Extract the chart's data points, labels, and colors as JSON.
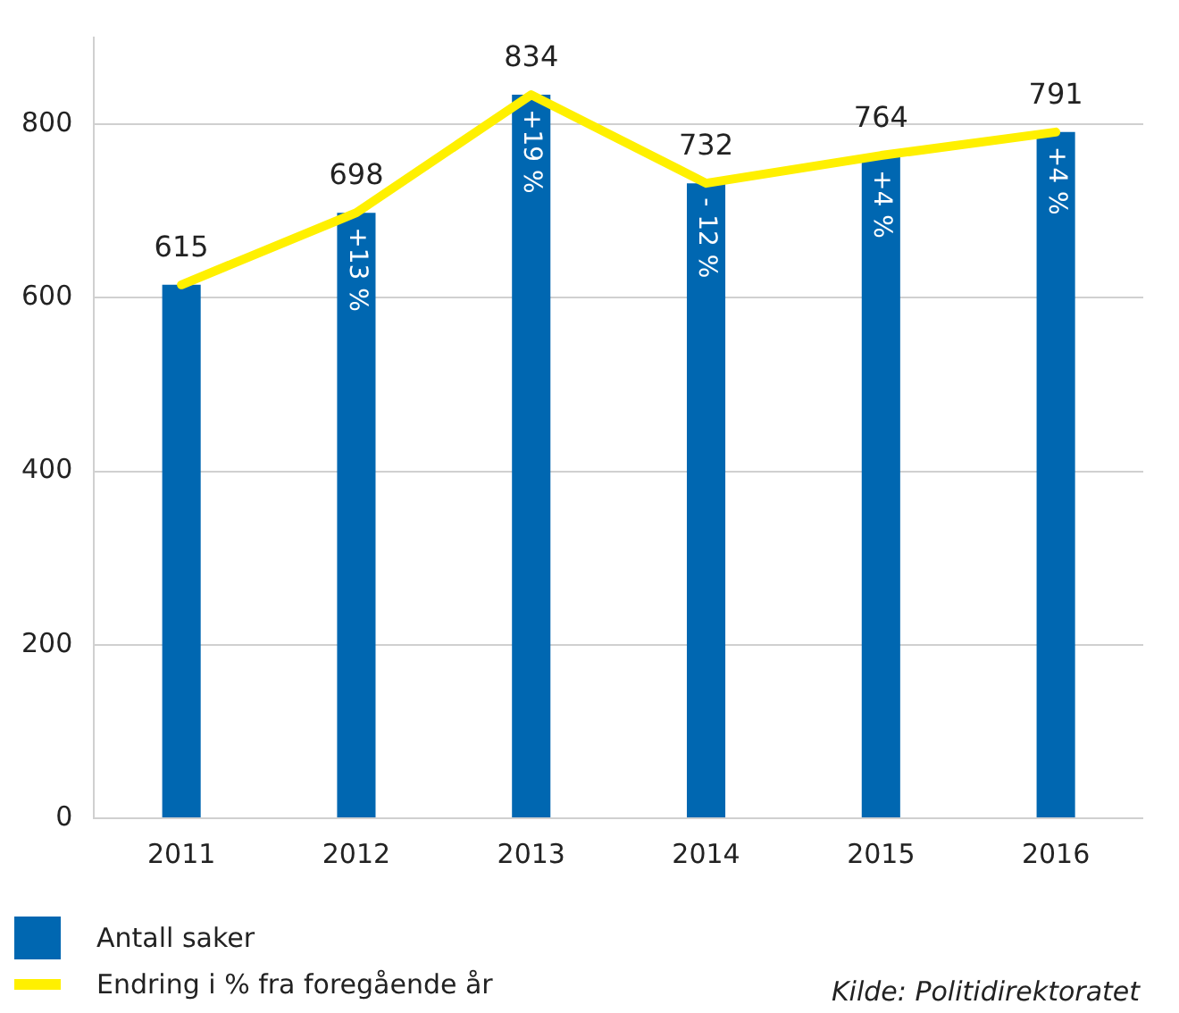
{
  "chart_data": {
    "type": "bar",
    "categories": [
      "2011",
      "2012",
      "2013",
      "2014",
      "2015",
      "2016"
    ],
    "series": [
      {
        "name": "Antall saker",
        "color": "#0067b1",
        "values": [
          615,
          698,
          834,
          732,
          764,
          791
        ],
        "value_labels": [
          "615",
          "698",
          "834",
          "732",
          "764",
          "791"
        ]
      },
      {
        "name": "Endring i % fra foregående år",
        "type": "line",
        "color": "#fff000",
        "values": [
          615,
          698,
          834,
          732,
          764,
          791
        ]
      }
    ],
    "ylim": [
      0,
      900
    ],
    "yticks": [
      0,
      200,
      400,
      600,
      800
    ],
    "grid": "y",
    "legend": "bottom",
    "marker": "none",
    "annotations": [
      {
        "text": "+13 %",
        "x": "2012",
        "y": 698
      },
      {
        "text": "+19 %",
        "x": "2013",
        "y": 834
      },
      {
        "text": "- 12 %",
        "x": "2014",
        "y": 732
      },
      {
        "text": "+4 %",
        "x": "2015",
        "y": 764
      },
      {
        "text": "+4 %",
        "x": "2016",
        "y": 791
      },
      "Kilde: Politidirektoratet"
    ]
  }
}
